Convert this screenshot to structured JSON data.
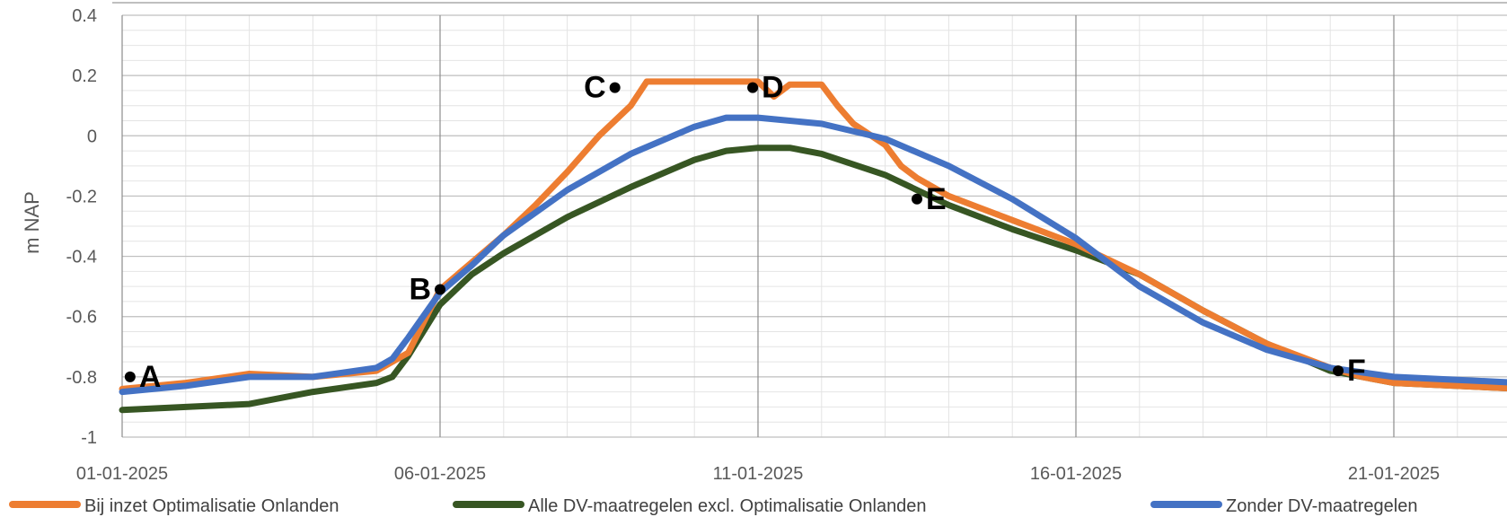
{
  "chart_data": {
    "type": "line",
    "title": "",
    "xlabel": "",
    "ylabel": "m NAP",
    "ylim": [
      -1,
      0.4
    ],
    "xlim": [
      "01-01-2025",
      "24-01-2025"
    ],
    "yticks": [
      "0.4",
      "0.2",
      "0",
      "-0.2",
      "-0.4",
      "-0.6",
      "-0.8",
      "-1"
    ],
    "xticks": [
      "01-01-2025",
      "06-01-2025",
      "11-01-2025",
      "16-01-2025",
      "21-01-2025"
    ],
    "grid": true,
    "legend_position": "bottom",
    "series": [
      {
        "name": "Bij inzet Optimalisatie Onlanden",
        "color": "#ED7D31",
        "points": [
          [
            "01-01-2025",
            -0.84
          ],
          [
            "02-01-2025",
            -0.82
          ],
          [
            "03-01-2025",
            -0.79
          ],
          [
            "04-01-2025",
            -0.8
          ],
          [
            "05-01-2025",
            -0.78
          ],
          [
            "05-01-2025 12:00",
            -0.72
          ],
          [
            "06-01-2025",
            -0.51
          ],
          [
            "06-01-2025 12:00",
            -0.42
          ],
          [
            "07-01-2025",
            -0.33
          ],
          [
            "07-01-2025 12:00",
            -0.23
          ],
          [
            "08-01-2025",
            -0.12
          ],
          [
            "08-01-2025 12:00",
            0.0
          ],
          [
            "09-01-2025",
            0.1
          ],
          [
            "09-01-2025 06:00",
            0.18
          ],
          [
            "10-01-2025",
            0.18
          ],
          [
            "11-01-2025",
            0.18
          ],
          [
            "11-01-2025 06:00",
            0.13
          ],
          [
            "11-01-2025 12:00",
            0.17
          ],
          [
            "12-01-2025",
            0.17
          ],
          [
            "12-01-2025 06:00",
            0.1
          ],
          [
            "12-01-2025 12:00",
            0.04
          ],
          [
            "13-01-2025",
            -0.03
          ],
          [
            "13-01-2025 06:00",
            -0.1
          ],
          [
            "13-01-2025 12:00",
            -0.14
          ],
          [
            "14-01-2025",
            -0.2
          ],
          [
            "14-01-2025 12:00",
            -0.24
          ],
          [
            "15-01-2025",
            -0.28
          ],
          [
            "16-01-2025",
            -0.36
          ],
          [
            "17-01-2025",
            -0.46
          ],
          [
            "18-01-2025",
            -0.58
          ],
          [
            "19-01-2025",
            -0.69
          ],
          [
            "20-01-2025",
            -0.77
          ],
          [
            "20-01-2025 12:00",
            -0.8
          ],
          [
            "21-01-2025",
            -0.82
          ],
          [
            "22-01-2025",
            -0.83
          ],
          [
            "23-01-2025",
            -0.84
          ],
          [
            "24-01-2025",
            -0.85
          ]
        ]
      },
      {
        "name": "Alle DV-maatregelen excl. Optimalisatie Onlanden",
        "color": "#375623",
        "points": [
          [
            "01-01-2025",
            -0.91
          ],
          [
            "02-01-2025",
            -0.9
          ],
          [
            "03-01-2025",
            -0.89
          ],
          [
            "04-01-2025",
            -0.85
          ],
          [
            "05-01-2025",
            -0.82
          ],
          [
            "05-01-2025 06:00",
            -0.8
          ],
          [
            "05-01-2025 12:00",
            -0.73
          ],
          [
            "06-01-2025",
            -0.56
          ],
          [
            "06-01-2025 12:00",
            -0.46
          ],
          [
            "07-01-2025",
            -0.39
          ],
          [
            "08-01-2025",
            -0.27
          ],
          [
            "09-01-2025",
            -0.17
          ],
          [
            "10-01-2025",
            -0.08
          ],
          [
            "10-01-2025 12:00",
            -0.05
          ],
          [
            "11-01-2025",
            -0.04
          ],
          [
            "11-01-2025 12:00",
            -0.04
          ],
          [
            "12-01-2025",
            -0.06
          ],
          [
            "13-01-2025",
            -0.13
          ],
          [
            "14-01-2025",
            -0.23
          ],
          [
            "15-01-2025",
            -0.31
          ],
          [
            "16-01-2025",
            -0.38
          ],
          [
            "17-01-2025",
            -0.46
          ],
          [
            "18-01-2025",
            -0.58
          ],
          [
            "19-01-2025",
            -0.69
          ],
          [
            "20-01-2025",
            -0.78
          ],
          [
            "21-01-2025",
            -0.82
          ],
          [
            "22-01-2025",
            -0.83
          ],
          [
            "23-01-2025",
            -0.84
          ],
          [
            "24-01-2025",
            -0.85
          ]
        ]
      },
      {
        "name": "Zonder DV-maatregelen",
        "color": "#4472C4",
        "points": [
          [
            "01-01-2025",
            -0.85
          ],
          [
            "02-01-2025",
            -0.83
          ],
          [
            "03-01-2025",
            -0.8
          ],
          [
            "04-01-2025",
            -0.8
          ],
          [
            "05-01-2025",
            -0.77
          ],
          [
            "05-01-2025 06:00",
            -0.74
          ],
          [
            "05-01-2025 12:00",
            -0.67
          ],
          [
            "06-01-2025",
            -0.52
          ],
          [
            "06-01-2025 12:00",
            -0.43
          ],
          [
            "07-01-2025",
            -0.33
          ],
          [
            "08-01-2025",
            -0.18
          ],
          [
            "09-01-2025",
            -0.06
          ],
          [
            "10-01-2025",
            0.03
          ],
          [
            "10-01-2025 12:00",
            0.06
          ],
          [
            "11-01-2025",
            0.06
          ],
          [
            "12-01-2025",
            0.04
          ],
          [
            "13-01-2025",
            -0.01
          ],
          [
            "14-01-2025",
            -0.1
          ],
          [
            "15-01-2025",
            -0.21
          ],
          [
            "16-01-2025",
            -0.34
          ],
          [
            "17-01-2025",
            -0.5
          ],
          [
            "18-01-2025",
            -0.62
          ],
          [
            "19-01-2025",
            -0.71
          ],
          [
            "20-01-2025",
            -0.77
          ],
          [
            "21-01-2025",
            -0.8
          ],
          [
            "22-01-2025",
            -0.81
          ],
          [
            "23-01-2025",
            -0.82
          ],
          [
            "24-01-2025",
            -0.82
          ]
        ]
      }
    ],
    "annotations": [
      {
        "label": "A",
        "x": "01-01-2025 03:00",
        "y": -0.8
      },
      {
        "label": "B",
        "x": "06-01-2025",
        "y": -0.51
      },
      {
        "label": "C",
        "x": "08-01-2025 18:00",
        "y": 0.16
      },
      {
        "label": "D",
        "x": "10-01-2025 22:00",
        "y": 0.16
      },
      {
        "label": "E",
        "x": "13-01-2025 12:00",
        "y": -0.21
      },
      {
        "label": "F",
        "x": "20-01-2025 03:00",
        "y": -0.78
      }
    ]
  }
}
